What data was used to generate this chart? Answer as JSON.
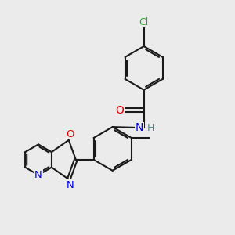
{
  "background_color": "#ebebeb",
  "bond_color": "#1a1a1a",
  "bond_width": 1.5,
  "atom_colors": {
    "C": "#1a1a1a",
    "N": "#0000ee",
    "O": "#dd0000",
    "Cl": "#22aa22",
    "H": "#448888"
  },
  "font_size": 9.5
}
